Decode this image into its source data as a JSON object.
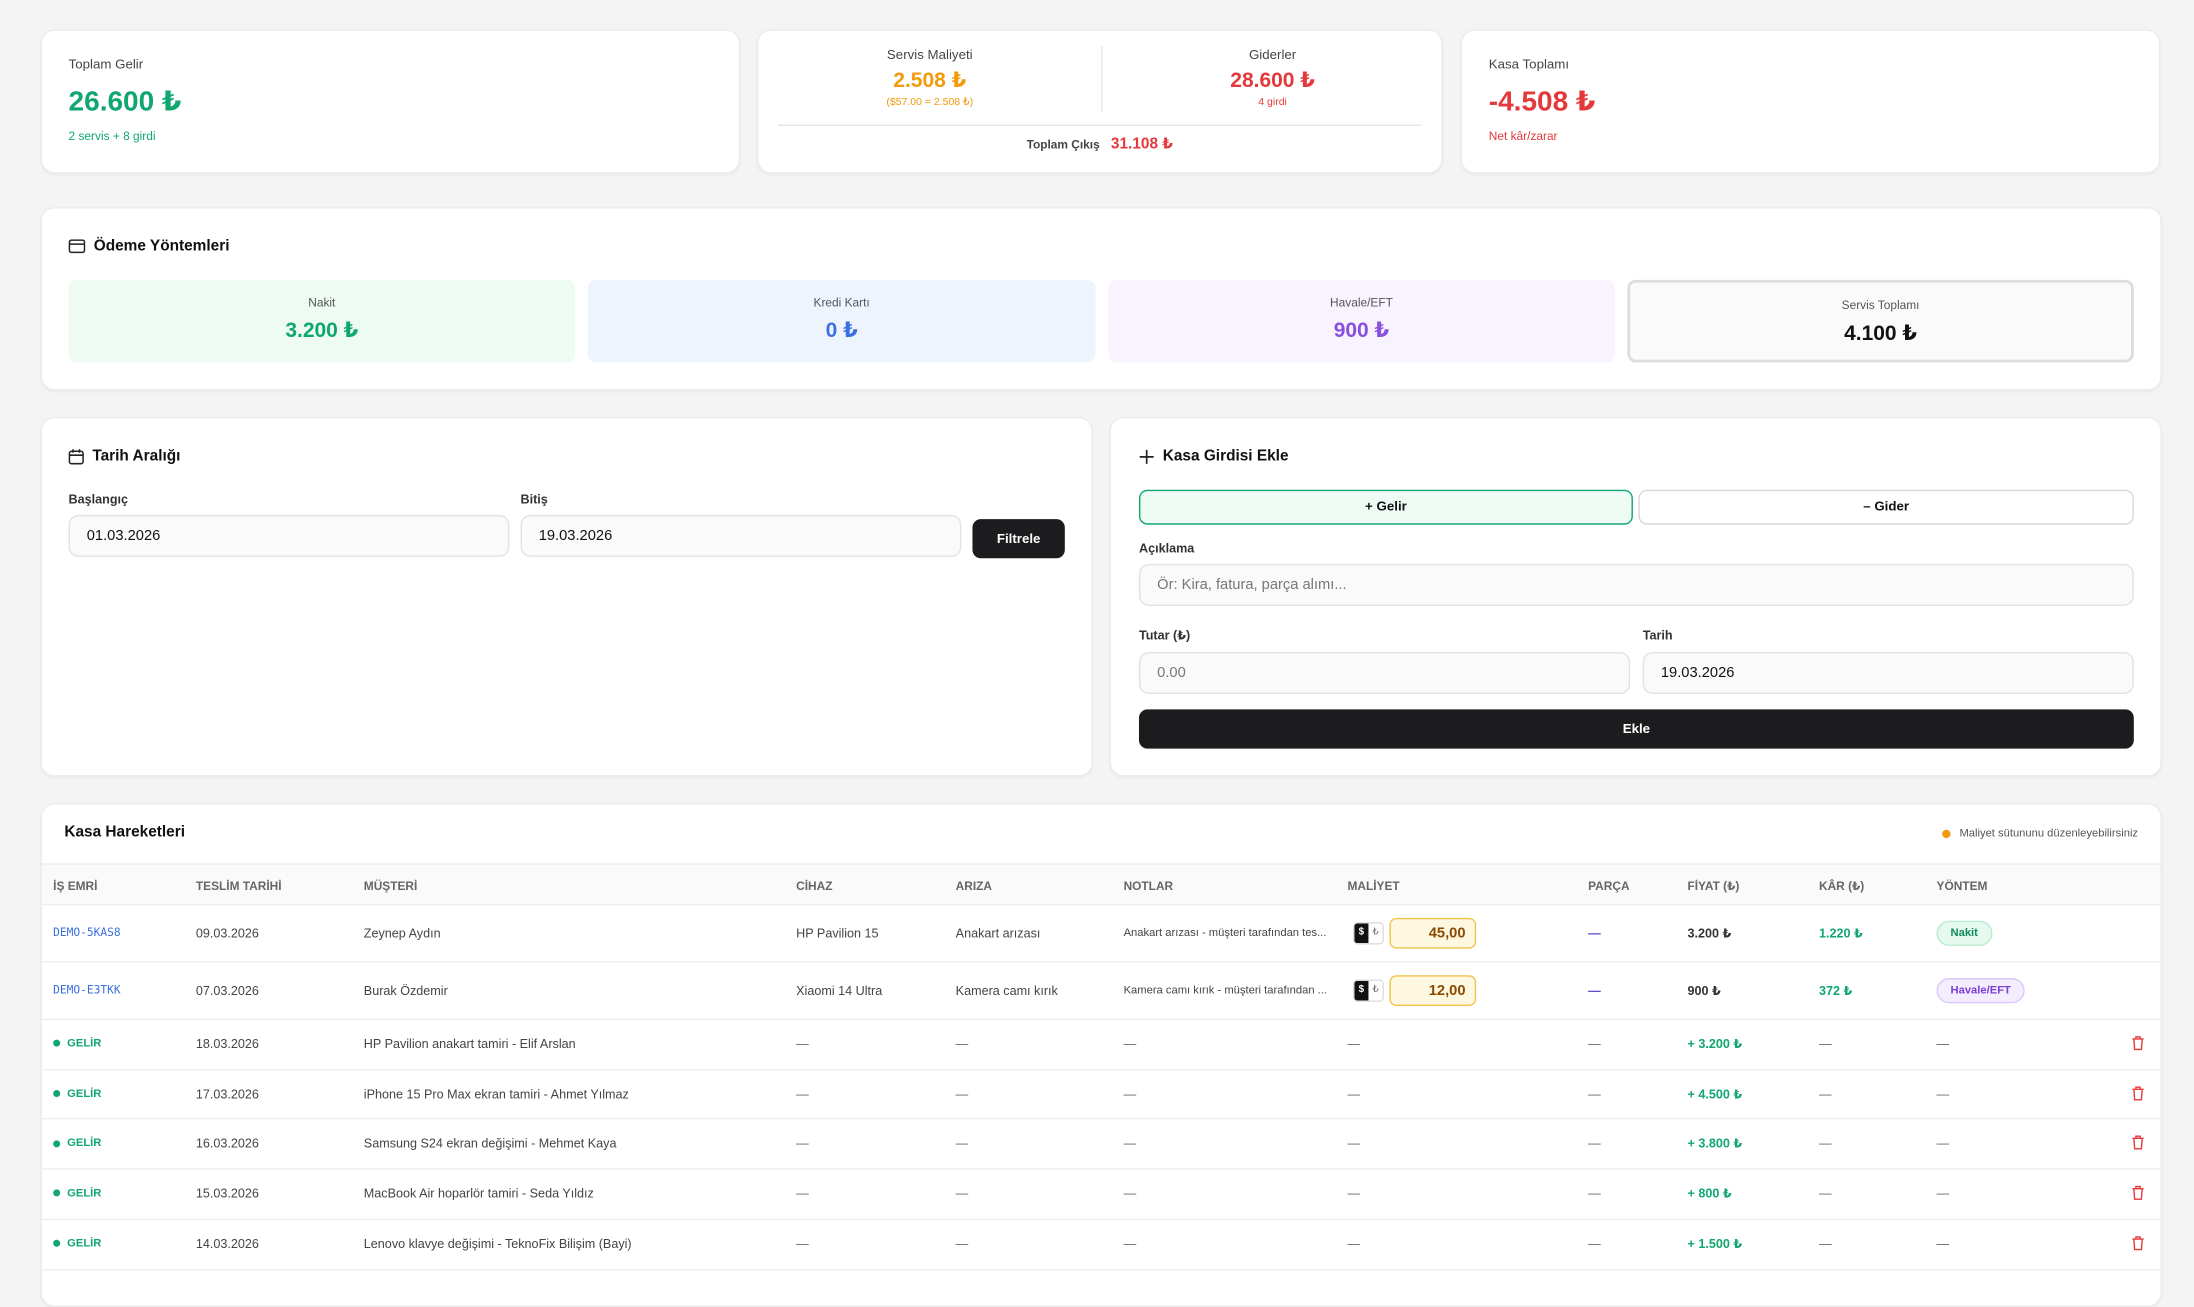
{
  "summary": {
    "total_income": {
      "label": "Toplam Gelir",
      "value": "26.600 ₺",
      "note": "2 servis + 8 girdi"
    },
    "service_cost": {
      "label": "Servis Maliyeti",
      "value": "2.508 ₺",
      "note": "($57.00 = 2.508 ₺)"
    },
    "expenses": {
      "label": "Giderler",
      "value": "28.600 ₺",
      "note": "4 girdi"
    },
    "total_out": {
      "label": "Toplam Çıkış",
      "value": "31.108 ₺"
    },
    "cash_total": {
      "label": "Kasa Toplamı",
      "value": "-4.508 ₺",
      "note": "Net kâr/zarar"
    }
  },
  "payment_methods": {
    "title": "Ödeme Yöntemleri",
    "items": [
      {
        "label": "Nakit",
        "value": "3.200 ₺"
      },
      {
        "label": "Kredi Kartı",
        "value": "0 ₺"
      },
      {
        "label": "Havale/EFT",
        "value": "900 ₺"
      },
      {
        "label": "Servis Toplamı",
        "value": "4.100 ₺"
      }
    ]
  },
  "date_range": {
    "title": "Tarih Aralığı",
    "start_label": "Başlangıç",
    "start": "01.03.2026",
    "end_label": "Bitiş",
    "end": "19.03.2026",
    "button": "Filtrele"
  },
  "add_entry": {
    "title": "Kasa Girdisi Ekle",
    "income_tab": "+ Gelir",
    "expense_tab": "– Gider",
    "desc_label": "Açıklama",
    "desc_placeholder": "Ör: Kira, fatura, parça alımı...",
    "amount_label": "Tutar (₺)",
    "amount_placeholder": "0.00",
    "date_label": "Tarih",
    "date": "19.03.2026",
    "button": "Ekle"
  },
  "table": {
    "title": "Kasa Hareketleri",
    "hint": "Maliyet sütununu düzenleyebilirsiniz",
    "columns": [
      "İŞ EMRİ",
      "TESLİM TARİHİ",
      "MÜŞTERİ",
      "CİHAZ",
      "ARIZA",
      "NOTLAR",
      "MALİYET",
      "PARÇA",
      "FİYAT (₺)",
      "KÂR (₺)",
      "YÖNTEM"
    ],
    "currency_toggle": [
      "$",
      "₺"
    ],
    "rows": [
      {
        "kind": "service",
        "cells": [
          "DEMO-5KAS8",
          "09.03.2026",
          "Zeynep Aydın",
          "HP Pavilion 15",
          "Anakart arızası",
          "Anakart arızası - müşteri tarafından tes...",
          "45,00",
          "—",
          "3.200 ₺",
          "1.220 ₺",
          "Nakit"
        ]
      },
      {
        "kind": "service",
        "cells": [
          "DEMO-E3TKK",
          "07.03.2026",
          "Burak Özdemir",
          "Xiaomi 14 Ultra",
          "Kamera camı kırık",
          "Kamera camı kırık - müşteri tarafından ...",
          "12,00",
          "—",
          "900 ₺",
          "372 ₺",
          "Havale/EFT"
        ]
      },
      {
        "kind": "income",
        "cells": [
          "GELİR",
          "18.03.2026",
          "HP Pavilion anakart tamiri - Elif Arslan",
          "—",
          "—",
          "—",
          "—",
          "—",
          "+ 3.200 ₺",
          "—",
          "—"
        ]
      },
      {
        "kind": "income",
        "cells": [
          "GELİR",
          "17.03.2026",
          "iPhone 15 Pro Max ekran tamiri - Ahmet Yılmaz",
          "—",
          "—",
          "—",
          "—",
          "—",
          "+ 4.500 ₺",
          "—",
          "—"
        ]
      },
      {
        "kind": "income",
        "cells": [
          "GELİR",
          "16.03.2026",
          "Samsung S24 ekran değişimi - Mehmet Kaya",
          "—",
          "—",
          "—",
          "—",
          "—",
          "+ 3.800 ₺",
          "—",
          "—"
        ]
      },
      {
        "kind": "income",
        "cells": [
          "GELİR",
          "15.03.2026",
          "MacBook Air hoparlör tamiri - Seda Yıldız",
          "—",
          "—",
          "—",
          "—",
          "—",
          "+ 800 ₺",
          "—",
          "—"
        ]
      },
      {
        "kind": "income",
        "cells": [
          "GELİR",
          "14.03.2026",
          "Lenovo klavye değişimi - TeknoFix Bilişim (Bayi)",
          "—",
          "—",
          "—",
          "—",
          "—",
          "+ 1.500 ₺",
          "—",
          "—"
        ]
      }
    ]
  }
}
